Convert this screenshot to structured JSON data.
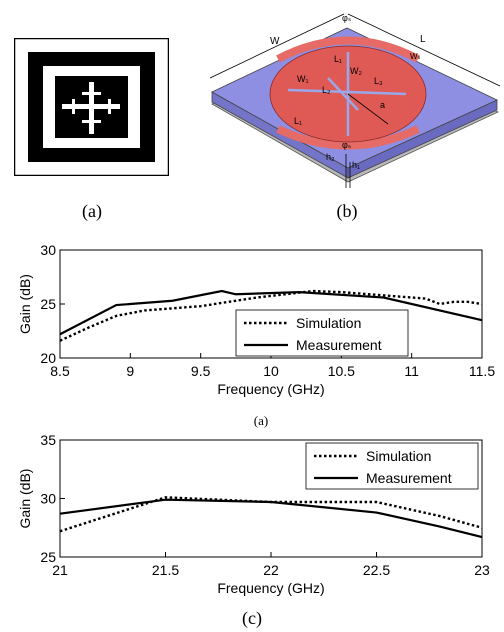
{
  "figure": {
    "panel_a_caption": "(a)",
    "panel_b_caption": "(b)",
    "subplot_a_caption": "(a)",
    "panel_c_caption": "(c)"
  },
  "antenna_labels": {
    "W": "W",
    "L": "L",
    "phi_top": "φₛ",
    "phi_bottom": "φₛ",
    "W1": "W₁",
    "W2": "W₂",
    "W_s": "Wₛ",
    "L1": "L₁",
    "L2": "L₂",
    "L3": "L₃",
    "L_small": "L₁",
    "a": "a",
    "h1": "h₁",
    "h2": "h₂"
  },
  "colors": {
    "substrate_top": "#8e8ee2",
    "substrate_side": "#7474c9",
    "ground": "#b9b9b9",
    "patch": "#e05a55",
    "ring": "#e66b66"
  },
  "chart_data": [
    {
      "type": "line",
      "title": "",
      "xlabel": "Frequency (GHz)",
      "ylabel": "Gain (dB)",
      "xlim": [
        8.5,
        11.5
      ],
      "ylim": [
        20,
        30
      ],
      "xticks": [
        8.5,
        9,
        9.5,
        10,
        10.5,
        11,
        11.5
      ],
      "xtick_labels": [
        "8.5",
        "9",
        "9.5",
        "10",
        "10.5",
        "11",
        "11.5"
      ],
      "yticks": [
        20,
        25,
        30
      ],
      "ytick_labels": [
        "20",
        "25",
        "30"
      ],
      "legend_position": "bottom-right",
      "series": [
        {
          "name": "Simulation",
          "style": "dotted",
          "x": [
            8.5,
            8.7,
            8.9,
            9.1,
            9.3,
            9.5,
            9.7,
            9.9,
            10.1,
            10.3,
            10.5,
            10.7,
            10.9,
            11.1,
            11.2,
            11.3,
            11.4,
            11.5
          ],
          "y": [
            21.6,
            22.8,
            23.9,
            24.4,
            24.6,
            24.8,
            25.2,
            25.6,
            25.9,
            26.2,
            26.1,
            25.9,
            25.7,
            25.5,
            25.0,
            25.2,
            25.2,
            25.0
          ]
        },
        {
          "name": "Measurement",
          "style": "solid",
          "x": [
            8.5,
            8.9,
            9.3,
            9.65,
            9.75,
            10.2,
            10.8,
            11.5
          ],
          "y": [
            22.2,
            24.9,
            25.3,
            26.2,
            25.9,
            26.1,
            25.6,
            23.5
          ]
        }
      ]
    },
    {
      "type": "line",
      "title": "",
      "xlabel": "Frequency (GHz)",
      "ylabel": "Gain (dB)",
      "xlim": [
        21,
        23
      ],
      "ylim": [
        25,
        35
      ],
      "xticks": [
        21,
        21.5,
        22,
        22.5,
        23
      ],
      "xtick_labels": [
        "21",
        "21.5",
        "22",
        "22.5",
        "23"
      ],
      "yticks": [
        25,
        30,
        35
      ],
      "ytick_labels": [
        "25",
        "30",
        "35"
      ],
      "legend_position": "top-right",
      "series": [
        {
          "name": "Simulation",
          "style": "dotted",
          "x": [
            21,
            21.5,
            22,
            22.5,
            22.8,
            23
          ],
          "y": [
            27.2,
            30.1,
            29.7,
            29.7,
            28.5,
            27.5
          ]
        },
        {
          "name": "Measurement",
          "style": "solid",
          "x": [
            21,
            21.5,
            22,
            22.5,
            22.8,
            23
          ],
          "y": [
            28.7,
            29.9,
            29.7,
            28.8,
            27.6,
            26.7
          ]
        }
      ]
    }
  ]
}
